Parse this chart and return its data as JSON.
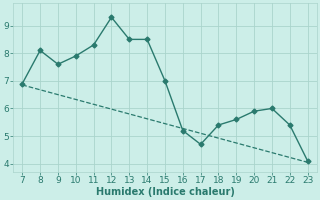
{
  "x": [
    7,
    8,
    9,
    10,
    11,
    12,
    13,
    14,
    15,
    16,
    17,
    18,
    19,
    20,
    21,
    22,
    23
  ],
  "y": [
    6.9,
    8.1,
    7.6,
    7.9,
    8.3,
    9.3,
    8.5,
    8.5,
    7.0,
    5.2,
    4.7,
    5.4,
    5.6,
    5.9,
    6.0,
    5.4,
    4.1
  ],
  "trend_x": [
    7,
    23
  ],
  "trend_y": [
    6.85,
    4.05
  ],
  "line_color": "#2a7a6e",
  "bg_color": "#cceee8",
  "xlabel": "Humidex (Indice chaleur)",
  "xlim": [
    6.5,
    23.5
  ],
  "ylim": [
    3.7,
    9.8
  ],
  "xticks": [
    7,
    8,
    9,
    10,
    11,
    12,
    13,
    14,
    15,
    16,
    17,
    18,
    19,
    20,
    21,
    22,
    23
  ],
  "yticks": [
    4,
    5,
    6,
    7,
    8,
    9
  ],
  "grid_color": "#aad4cc",
  "label_fontsize": 7,
  "tick_fontsize": 6.5
}
